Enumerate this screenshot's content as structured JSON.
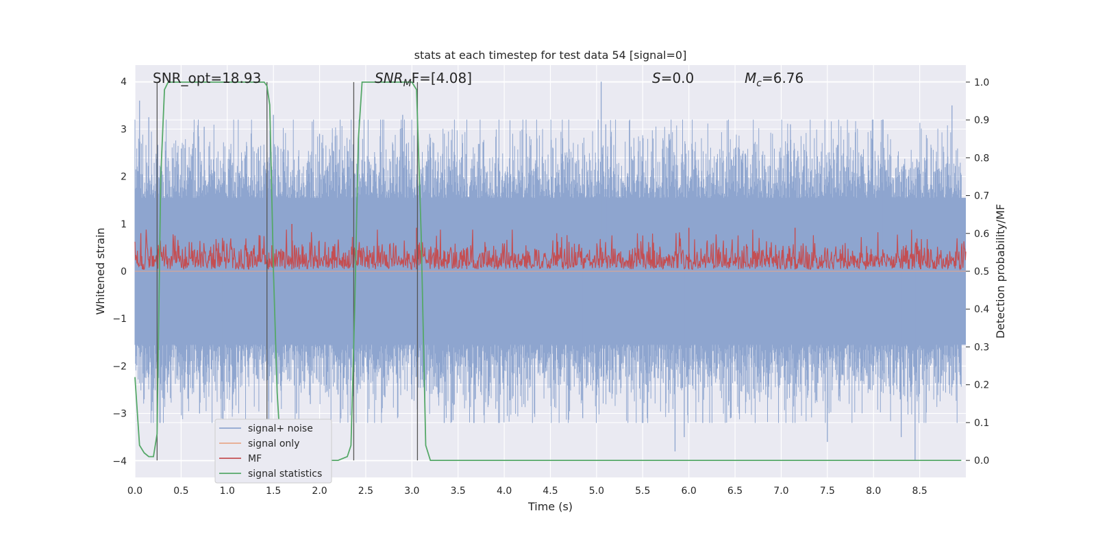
{
  "chart_data": {
    "type": "line",
    "title": "stats at each timestep for test data 54 [signal=0]",
    "xlabel": "Time (s)",
    "ylabel": "Whitened strain",
    "y2label": "Detection probability/MF",
    "xlim": [
      0.0,
      9.0
    ],
    "ylim": [
      -4.35,
      4.35
    ],
    "y2lim": [
      -0.045,
      1.045
    ],
    "x_ticks": [
      "0.0",
      "0.5",
      "1.0",
      "1.5",
      "2.0",
      "2.5",
      "3.0",
      "3.5",
      "4.0",
      "4.5",
      "5.0",
      "5.5",
      "6.0",
      "6.5",
      "7.0",
      "7.5",
      "8.0",
      "8.5"
    ],
    "y_ticks": [
      "−4",
      "−3",
      "−2",
      "−1",
      "0",
      "1",
      "2",
      "3",
      "4"
    ],
    "y2_ticks": [
      "0.0",
      "0.1",
      "0.2",
      "0.3",
      "0.4",
      "0.5",
      "0.6",
      "0.7",
      "0.8",
      "0.9",
      "1.0"
    ],
    "grid": true,
    "legend_position": "lower-left",
    "annotations": {
      "snr_opt": "SNR_opt=18.93",
      "snr_mf": "F=[4.08]",
      "s_value": "=0.0",
      "mc_value": "=6.76"
    },
    "series": [
      {
        "name": "signal+ noise",
        "color": "#8ea5cf",
        "axis": "left",
        "description_values": "noise envelope roughly between -4 and 4, mostly within [-1.6, 1.6]",
        "envelope_low": -1.55,
        "envelope_high": 1.55,
        "spike_x": [
          0.05,
          0.1,
          0.15,
          0.2,
          0.7,
          0.75,
          0.95,
          1.45,
          1.5,
          1.75,
          1.9,
          2.0,
          2.2,
          2.9,
          3.0,
          3.35,
          4.85,
          5.05,
          5.1,
          5.55,
          5.85,
          5.95,
          6.15,
          6.45,
          7.1,
          7.5,
          8.1,
          8.3,
          8.45,
          8.85
        ],
        "spike_y": [
          3.6,
          -2.7,
          3.25,
          -2.5,
          -3.0,
          3.05,
          -2.6,
          -3.3,
          3.3,
          -3.0,
          -2.8,
          2.9,
          -2.6,
          3.3,
          -2.7,
          -3.2,
          -3.1,
          4.0,
          3.1,
          -3.1,
          -3.8,
          -3.5,
          -3.2,
          -3.1,
          3.1,
          -3.6,
          3.2,
          -3.5,
          -4.0,
          3.5
        ]
      },
      {
        "name": "signal only",
        "color": "#e8a88a",
        "axis": "left",
        "x": [
          0.0,
          9.0
        ],
        "y": [
          0.0,
          0.0
        ]
      },
      {
        "name": "MF",
        "color": "#c44e52",
        "axis": "right",
        "envelope_low": 0.505,
        "envelope_high": 0.61,
        "peak_x": [
          1.7,
          3.05,
          6.0,
          7.15
        ],
        "peak_y": [
          0.625,
          0.615,
          0.615,
          0.615
        ]
      },
      {
        "name": "signal statistics",
        "color": "#55a868",
        "axis": "right",
        "x": [
          0.0,
          0.05,
          0.1,
          0.15,
          0.2,
          0.24,
          0.28,
          0.32,
          0.36,
          0.4,
          0.6,
          0.8,
          1.0,
          1.2,
          1.4,
          1.43,
          1.46,
          1.5,
          1.54,
          1.58,
          1.62,
          1.7,
          1.8,
          1.9,
          2.0,
          2.1,
          2.2,
          2.3,
          2.34,
          2.38,
          2.42,
          2.46,
          2.6,
          2.8,
          3.0,
          3.05,
          3.1,
          3.15,
          3.2,
          4.0,
          5.0,
          6.0,
          7.0,
          8.0,
          8.95
        ],
        "y": [
          0.22,
          0.04,
          0.02,
          0.01,
          0.01,
          0.07,
          0.75,
          0.98,
          1.0,
          1.0,
          1.0,
          1.0,
          1.0,
          1.0,
          1.0,
          0.99,
          0.94,
          0.5,
          0.18,
          0.02,
          0.01,
          0.01,
          0.02,
          0.03,
          0.01,
          0.0,
          0.0,
          0.01,
          0.04,
          0.4,
          0.85,
          1.0,
          1.0,
          1.0,
          1.0,
          0.98,
          0.6,
          0.04,
          0.0,
          0.0,
          0.0,
          0.0,
          0.0,
          0.0,
          0.0
        ]
      }
    ],
    "vertical_lines_x": [
      0.24,
      1.43,
      2.37,
      3.06
    ]
  }
}
